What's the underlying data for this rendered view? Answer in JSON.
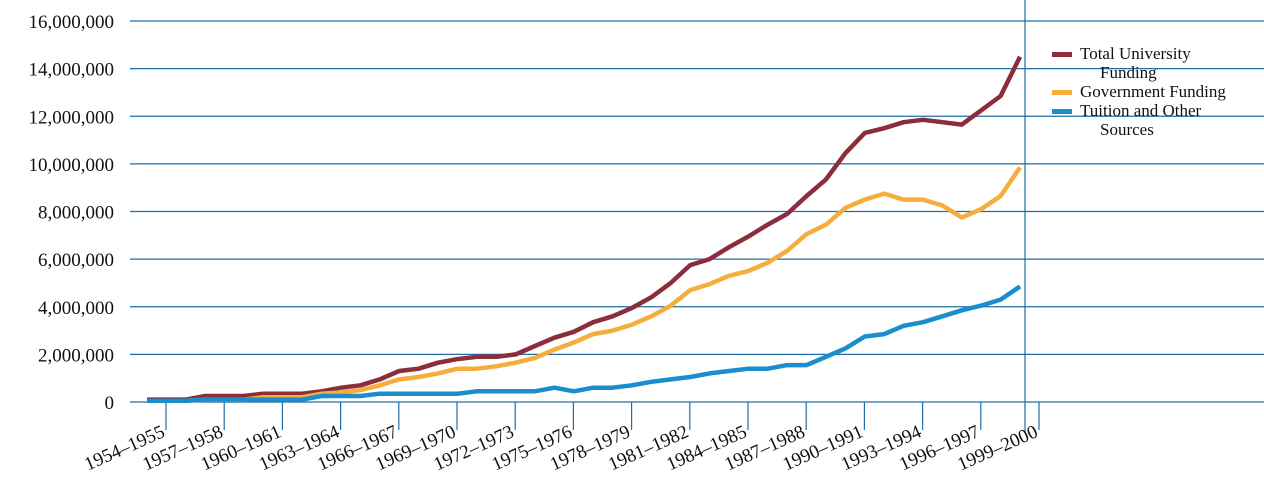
{
  "chart_data": {
    "type": "line",
    "categories": [
      "1954–1955",
      null,
      null,
      "1957–1958",
      null,
      null,
      "1960–1961",
      null,
      null,
      "1963–1964",
      null,
      null,
      "1966–1967",
      null,
      null,
      "1969–1970",
      null,
      null,
      "1972–1973",
      null,
      null,
      "1975–1976",
      null,
      null,
      "1978–1979",
      null,
      null,
      "1981–1982",
      null,
      null,
      "1984–1985",
      null,
      null,
      "1987–1988",
      null,
      null,
      "1990–1991",
      null,
      null,
      "1993–1994",
      null,
      null,
      "1996–1997",
      null,
      null,
      "1999–2000"
    ],
    "series": [
      {
        "name": "Total University Funding",
        "color": "#8b2d3b",
        "values": [
          100000,
          100000,
          100000,
          250000,
          250000,
          250000,
          350000,
          350000,
          350000,
          450000,
          600000,
          700000,
          950000,
          1300000,
          1400000,
          1650000,
          1800000,
          1900000,
          1900000,
          2000000,
          2350000,
          2700000,
          2950000,
          3350000,
          3600000,
          3950000,
          4400000,
          5000000,
          5750000,
          6000000,
          6500000,
          6950000,
          7450000,
          7900000,
          8650000,
          9350000,
          10450000,
          11300000,
          11500000,
          11750000,
          11850000,
          11750000,
          11650000,
          12250000,
          12850000,
          14500000
        ]
      },
      {
        "name": "Government Funding",
        "color": "#f6ad3b",
        "values": [
          50000,
          50000,
          50000,
          100000,
          100000,
          100000,
          200000,
          200000,
          200000,
          350000,
          400000,
          500000,
          700000,
          950000,
          1050000,
          1200000,
          1400000,
          1400000,
          1500000,
          1650000,
          1850000,
          2200000,
          2500000,
          2850000,
          3000000,
          3250000,
          3600000,
          4050000,
          4700000,
          4950000,
          5300000,
          5500000,
          5850000,
          6350000,
          7050000,
          7450000,
          8150000,
          8500000,
          8750000,
          8500000,
          8500000,
          8250000,
          7750000,
          8100000,
          8650000,
          9850000
        ]
      },
      {
        "name": "Tuition and Other Sources",
        "color": "#1b8ccc",
        "values": [
          50000,
          50000,
          50000,
          100000,
          100000,
          100000,
          100000,
          100000,
          100000,
          250000,
          250000,
          250000,
          350000,
          350000,
          350000,
          350000,
          350000,
          450000,
          450000,
          450000,
          450000,
          600000,
          450000,
          600000,
          600000,
          700000,
          850000,
          950000,
          1050000,
          1200000,
          1300000,
          1400000,
          1400000,
          1550000,
          1550000,
          1900000,
          2250000,
          2750000,
          2850000,
          3200000,
          3350000,
          3600000,
          3850000,
          4050000,
          4300000,
          4850000
        ]
      }
    ],
    "ylim": [
      0,
      16000000
    ],
    "yticks": [
      0,
      {
        "value": 2000000,
        "label": "2,000,000"
      },
      {
        "value": 4000000,
        "label": "4,000,000"
      },
      {
        "value": 6000000,
        "label": "6,000,000"
      },
      {
        "value": 8000000,
        "label": "8,000,000"
      },
      {
        "value": 10000000,
        "label": "10,000,000"
      },
      {
        "value": 12000000,
        "label": "12,000,000"
      },
      {
        "value": 14000000,
        "label": "14,000,000"
      },
      {
        "value": 16000000,
        "label": "16,000,000"
      }
    ],
    "grid": true,
    "legend": "right"
  }
}
